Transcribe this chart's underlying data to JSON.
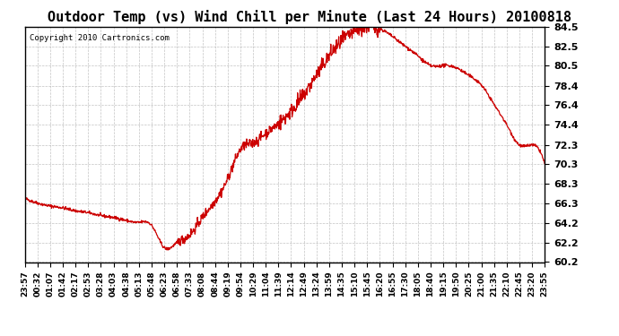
{
  "title": "Outdoor Temp (vs) Wind Chill per Minute (Last 24 Hours) 20100818",
  "copyright": "Copyright 2010 Cartronics.com",
  "line_color": "#cc0000",
  "background_color": "#ffffff",
  "grid_color": "#aaaaaa",
  "ylim": [
    60.2,
    84.5
  ],
  "yticks": [
    60.2,
    62.2,
    64.2,
    66.3,
    68.3,
    70.3,
    72.3,
    74.4,
    76.4,
    78.4,
    80.5,
    82.5,
    84.5
  ],
  "xtick_labels": [
    "23:57",
    "00:32",
    "01:07",
    "01:42",
    "02:17",
    "02:53",
    "03:28",
    "04:03",
    "04:38",
    "05:13",
    "05:48",
    "06:23",
    "06:58",
    "07:33",
    "08:08",
    "08:44",
    "09:19",
    "09:54",
    "10:29",
    "11:04",
    "11:39",
    "12:14",
    "12:49",
    "13:24",
    "13:59",
    "14:35",
    "15:10",
    "15:45",
    "16:20",
    "16:55",
    "17:30",
    "18:05",
    "18:40",
    "19:15",
    "19:50",
    "20:25",
    "21:00",
    "21:35",
    "22:10",
    "22:45",
    "23:20",
    "23:55"
  ],
  "num_points": 42,
  "curve_key_x": [
    0,
    1,
    2,
    3,
    4,
    5,
    6,
    7,
    8,
    9,
    10,
    11,
    12,
    13,
    14,
    15,
    16,
    17,
    18,
    19,
    20,
    21,
    22,
    23,
    24,
    25,
    26,
    27,
    28,
    29,
    30,
    31,
    32,
    33,
    34,
    35,
    36,
    37,
    38,
    39,
    40,
    41
  ],
  "curve_key_y": [
    66.8,
    66.3,
    66.0,
    65.8,
    65.5,
    65.3,
    65.0,
    64.8,
    64.5,
    64.3,
    64.0,
    61.7,
    62.2,
    63.0,
    64.8,
    66.5,
    68.8,
    71.8,
    72.5,
    73.5,
    74.5,
    75.8,
    77.5,
    79.5,
    81.5,
    83.0,
    84.0,
    84.5,
    84.3,
    83.5,
    82.5,
    81.5,
    80.5,
    80.5,
    80.3,
    79.5,
    78.5,
    76.5,
    74.4,
    72.3,
    72.3,
    70.3
  ]
}
